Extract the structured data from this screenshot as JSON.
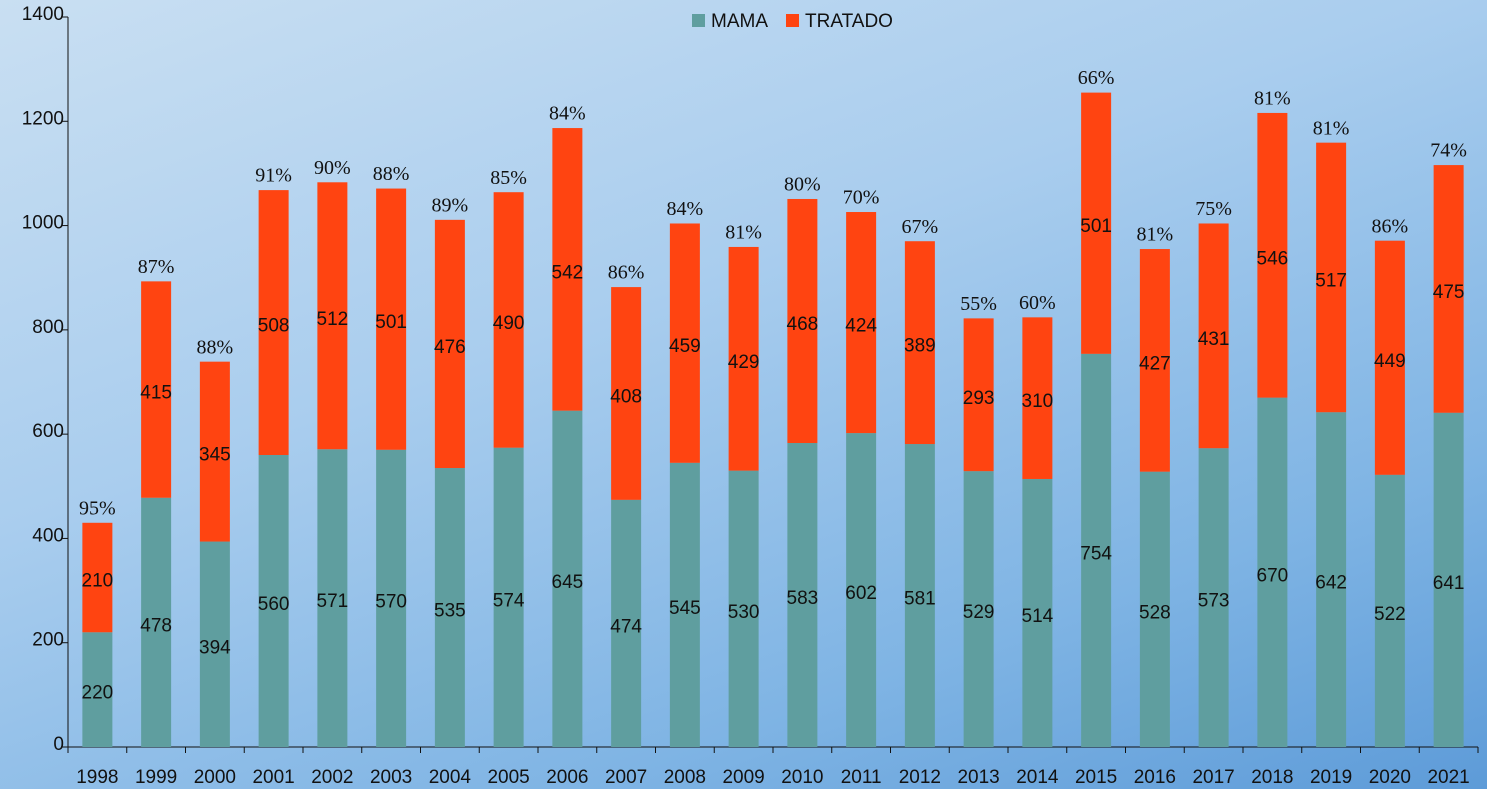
{
  "chart_data": {
    "type": "stacked_bar",
    "categories": [
      "1998",
      "1999",
      "2000",
      "2001",
      "2002",
      "2003",
      "2004",
      "2005",
      "2006",
      "2007",
      "2008",
      "2009",
      "2010",
      "2011",
      "2012",
      "2013",
      "2014",
      "2015",
      "2016",
      "2017",
      "2018",
      "2019",
      "2020",
      "2021"
    ],
    "series": [
      {
        "name": "MAMA",
        "color": "#5f9e9f",
        "values": [
          220,
          478,
          394,
          560,
          571,
          570,
          535,
          574,
          645,
          474,
          545,
          530,
          583,
          602,
          581,
          529,
          514,
          754,
          528,
          573,
          670,
          642,
          522,
          641
        ]
      },
      {
        "name": "TRATADO",
        "color": "#ff4411",
        "values": [
          210,
          415,
          345,
          508,
          512,
          501,
          476,
          490,
          542,
          408,
          459,
          429,
          468,
          424,
          389,
          293,
          310,
          501,
          427,
          431,
          546,
          517,
          449,
          475
        ]
      }
    ],
    "annotations": [
      "95%",
      "87%",
      "88%",
      "91%",
      "90%",
      "88%",
      "89%",
      "85%",
      "84%",
      "86%",
      "84%",
      "81%",
      "80%",
      "70%",
      "67%",
      "55%",
      "60%",
      "66%",
      "81%",
      "75%",
      "81%",
      "81%",
      "86%",
      "74%"
    ],
    "ylim": [
      0,
      1400
    ],
    "yticks": [
      0,
      200,
      400,
      600,
      800,
      1000,
      1200,
      1400
    ],
    "legend": "top"
  }
}
